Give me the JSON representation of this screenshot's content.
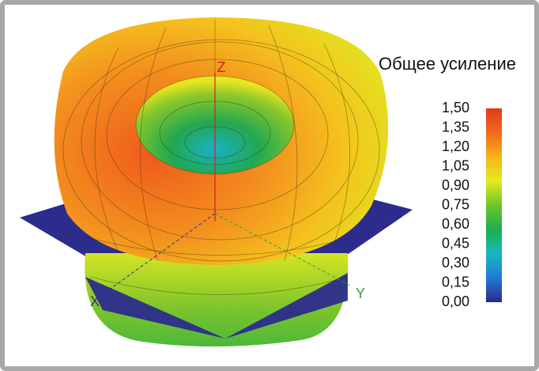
{
  "chart_data": {
    "type": "surface3d",
    "title": "Общее усиление",
    "axis_labels": {
      "x": "X",
      "y": "Y",
      "z": "Z"
    },
    "colorbar": {
      "clim": [
        0,
        1.5
      ],
      "colormap": [
        "#2a2a8c",
        "#1f7ad8",
        "#19b8c0",
        "#1fae4a",
        "#6cc62c",
        "#e6ea1e",
        "#f7b21c",
        "#ee6a1c",
        "#e23a1c"
      ],
      "ticks": [
        {
          "value": 0,
          "label": "0,00"
        },
        {
          "value": 0.15,
          "label": "0,15"
        },
        {
          "value": 0.3,
          "label": "0,30"
        },
        {
          "value": 0.45,
          "label": "0,45"
        },
        {
          "value": 0.6,
          "label": "0,60"
        },
        {
          "value": 0.75,
          "label": "0,75"
        },
        {
          "value": 0.9,
          "label": "0,90"
        },
        {
          "value": 1.05,
          "label": "1,05"
        },
        {
          "value": 1.2,
          "label": "1,20"
        },
        {
          "value": 1.35,
          "label": "1,35"
        },
        {
          "value": 1.5,
          "label": "1,50"
        }
      ]
    }
  }
}
